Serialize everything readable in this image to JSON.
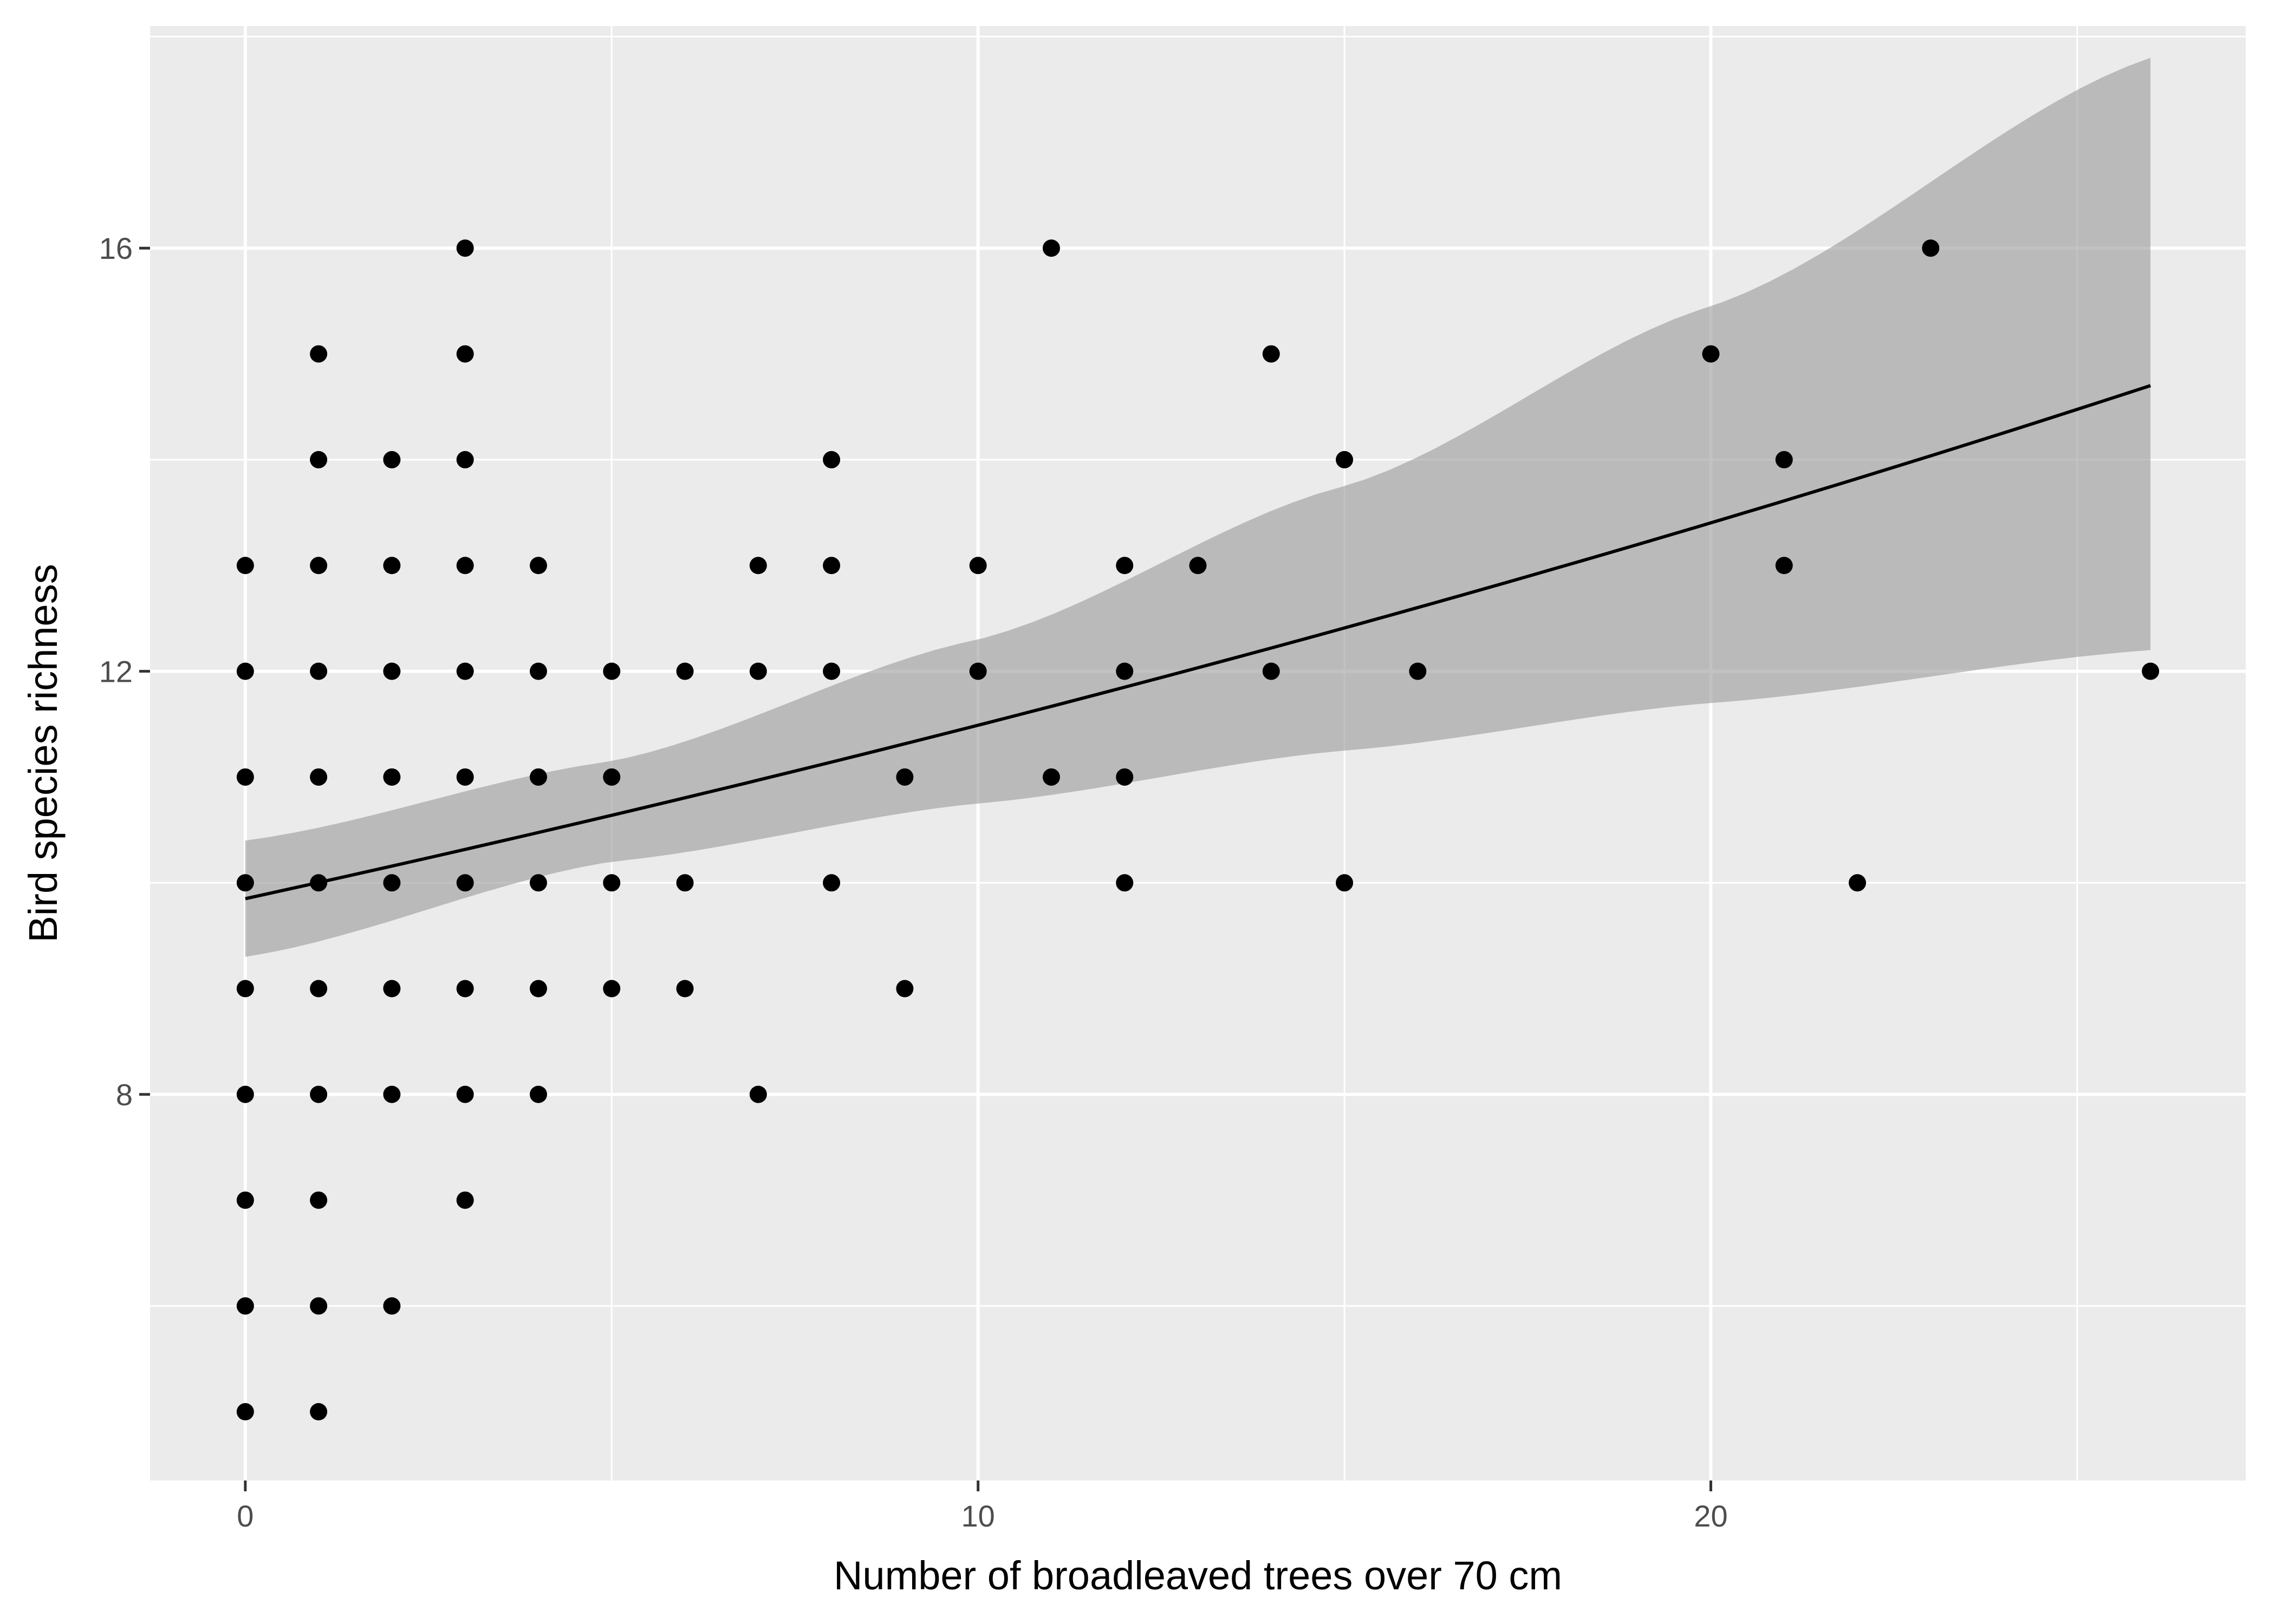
{
  "chart_data": {
    "type": "scatter",
    "title": "",
    "xlabel": "Number of broadleaved trees over 70 cm",
    "ylabel": "Bird species richness",
    "xlim": [
      -1.3,
      27.3
    ],
    "ylim": [
      4.35,
      18.1
    ],
    "x_ticks": [
      0,
      10,
      20
    ],
    "y_ticks": [
      8,
      12,
      16
    ],
    "x_minor_ticks": [
      5,
      15,
      25
    ],
    "y_minor_ticks": [
      6,
      10,
      14,
      18
    ],
    "grid": true,
    "legend": "none",
    "points": [
      [
        0,
        5
      ],
      [
        0,
        6
      ],
      [
        0,
        7
      ],
      [
        0,
        8
      ],
      [
        0,
        9
      ],
      [
        0,
        10
      ],
      [
        0,
        11
      ],
      [
        0,
        12
      ],
      [
        0,
        13
      ],
      [
        1,
        5
      ],
      [
        1,
        6
      ],
      [
        1,
        7
      ],
      [
        1,
        8
      ],
      [
        1,
        9
      ],
      [
        1,
        10
      ],
      [
        1,
        11
      ],
      [
        1,
        12
      ],
      [
        1,
        13
      ],
      [
        1,
        14
      ],
      [
        1,
        15
      ],
      [
        2,
        6
      ],
      [
        2,
        8
      ],
      [
        2,
        9
      ],
      [
        2,
        10
      ],
      [
        2,
        11
      ],
      [
        2,
        12
      ],
      [
        2,
        13
      ],
      [
        2,
        14
      ],
      [
        3,
        7
      ],
      [
        3,
        8
      ],
      [
        3,
        9
      ],
      [
        3,
        10
      ],
      [
        3,
        11
      ],
      [
        3,
        12
      ],
      [
        3,
        13
      ],
      [
        3,
        14
      ],
      [
        3,
        15
      ],
      [
        3,
        16
      ],
      [
        4,
        8
      ],
      [
        4,
        9
      ],
      [
        4,
        10
      ],
      [
        4,
        11
      ],
      [
        4,
        12
      ],
      [
        4,
        13
      ],
      [
        5,
        9
      ],
      [
        5,
        10
      ],
      [
        5,
        11
      ],
      [
        5,
        12
      ],
      [
        6,
        9
      ],
      [
        6,
        10
      ],
      [
        6,
        12
      ],
      [
        7,
        8
      ],
      [
        7,
        12
      ],
      [
        7,
        13
      ],
      [
        8,
        10
      ],
      [
        8,
        12
      ],
      [
        8,
        13
      ],
      [
        8,
        14
      ],
      [
        9,
        9
      ],
      [
        9,
        11
      ],
      [
        10,
        12
      ],
      [
        10,
        13
      ],
      [
        11,
        11
      ],
      [
        11,
        16
      ],
      [
        12,
        10
      ],
      [
        12,
        11
      ],
      [
        12,
        12
      ],
      [
        12,
        13
      ],
      [
        13,
        13
      ],
      [
        14,
        12
      ],
      [
        14,
        15
      ],
      [
        15,
        10
      ],
      [
        15,
        14
      ],
      [
        16,
        12
      ],
      [
        20,
        15
      ],
      [
        21,
        13
      ],
      [
        21,
        14
      ],
      [
        22,
        10
      ],
      [
        23,
        16
      ],
      [
        26,
        12
      ]
    ],
    "fit": {
      "type": "exponential",
      "intercept": 9.85,
      "rate": 0.0154,
      "x_range": [
        0,
        26
      ],
      "ci_lower": [
        [
          0,
          9.3
        ],
        [
          5,
          10.2
        ],
        [
          10,
          10.75
        ],
        [
          15,
          11.25
        ],
        [
          20,
          11.7
        ],
        [
          26,
          12.2
        ]
      ],
      "ci_upper": [
        [
          0,
          10.4
        ],
        [
          5,
          11.15
        ],
        [
          10,
          12.3
        ],
        [
          15,
          13.75
        ],
        [
          20,
          15.45
        ],
        [
          26,
          17.8
        ]
      ]
    },
    "colors": {
      "panel_background": "#ebebeb",
      "grid": "#ffffff",
      "points": "#000000",
      "fit_line": "#000000",
      "ci_band": "#999999"
    }
  }
}
